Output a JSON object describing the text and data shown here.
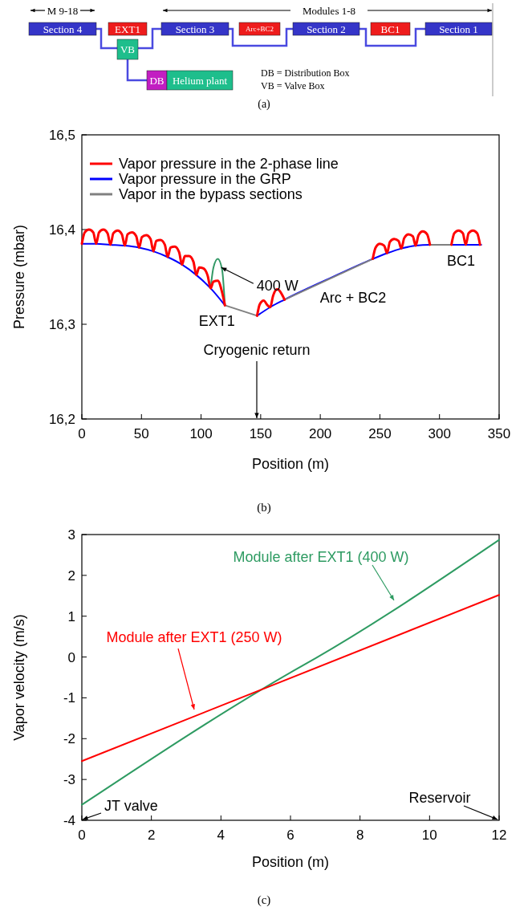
{
  "chart_data": [
    {
      "type": "other",
      "annotations": [
        "M 9-18",
        "Modules 1-8",
        "Section 4",
        "EXT1",
        "Section 3",
        "Arc+BC2",
        "Section 2",
        "BC1",
        "Section 1",
        "VB",
        "DB",
        "Helium plant",
        "DB = Distribution Box",
        "VB = Valve Box",
        "(a)"
      ]
    },
    {
      "type": "line",
      "xlabel": "Position (m)",
      "ylabel": "Pressure (mbar)",
      "xlim": [
        0,
        350
      ],
      "ylim": [
        16.2,
        16.5
      ],
      "xticks": [
        0,
        50,
        100,
        150,
        200,
        250,
        300,
        350
      ],
      "yticks": [
        {
          "value": 16.2,
          "label": "16,2"
        },
        {
          "value": 16.3,
          "label": "16,3"
        },
        {
          "value": 16.4,
          "label": "16,4"
        },
        {
          "value": 16.5,
          "label": "16,5"
        }
      ],
      "legend": "top left",
      "marker": "none",
      "series": [
        {
          "name": "Vapor pressure in the 2-phase line",
          "color": "#ff0000",
          "x": [
            0,
            2.4,
            6,
            9.6,
            12,
            14.4,
            18,
            21.6,
            24,
            26.4,
            30,
            33.6,
            36,
            38.4,
            42,
            45.6,
            48,
            50.4,
            54,
            57.6,
            60,
            62.4,
            66,
            69.6,
            72,
            74.4,
            78,
            81.6,
            84,
            86.4,
            90,
            93.6,
            96,
            98.4,
            102,
            105.6,
            108,
            110.4,
            114,
            117.6,
            120,
            133,
            147,
            149.2,
            152.5,
            155.8,
            158,
            160.4,
            164,
            167.6,
            170,
            200,
            244,
            246.4,
            250,
            253.6,
            256,
            258.4,
            262,
            265.6,
            268,
            270.4,
            274,
            277.6,
            280,
            282.4,
            286,
            289.6,
            292,
            300,
            310,
            312.4,
            316,
            319.6,
            322,
            324.4,
            328,
            331.6,
            334
          ],
          "values": [
            16.385,
            16.397,
            16.4,
            16.397,
            16.385,
            16.397,
            16.4,
            16.396,
            16.384,
            16.396,
            16.399,
            16.395,
            16.383,
            16.395,
            16.397,
            16.393,
            16.381,
            16.392,
            16.394,
            16.39,
            16.377,
            16.388,
            16.389,
            16.384,
            16.371,
            16.381,
            16.382,
            16.376,
            16.363,
            16.372,
            16.372,
            16.366,
            16.352,
            16.36,
            16.359,
            16.351,
            16.338,
            16.345,
            16.346,
            16.334,
            16.32,
            null,
            16.309,
            16.321,
            16.325,
            16.32,
            16.318,
            16.33,
            16.337,
            16.332,
            16.326,
            null,
            16.369,
            16.381,
            16.385,
            16.383,
            16.375,
            16.387,
            16.39,
            16.388,
            16.38,
            16.391,
            16.395,
            16.393,
            16.383,
            16.394,
            16.398,
            16.395,
            16.384,
            null,
            16.384,
            16.396,
            16.399,
            16.396,
            16.384,
            16.396,
            16.399,
            16.396,
            16.384
          ]
        },
        {
          "name": "Vapor pressure in the GRP",
          "color": "#0000ff",
          "x": [
            0,
            12,
            24,
            36,
            48,
            60,
            72,
            84,
            96,
            108,
            120,
            133,
            147,
            158,
            170,
            207,
            244,
            256,
            268,
            280,
            292,
            310,
            335
          ],
          "values": [
            16.385,
            16.385,
            16.384,
            16.383,
            16.381,
            16.377,
            16.371,
            16.363,
            16.352,
            16.338,
            16.32,
            null,
            16.309,
            16.318,
            16.326,
            16.348,
            16.369,
            16.375,
            16.38,
            16.383,
            16.384,
            16.384,
            16.384
          ]
        },
        {
          "name": "Vapor in the bypass sections",
          "color": "#808080",
          "x": [
            120,
            147,
            158,
            170,
            244,
            268,
            292,
            310
          ],
          "values": [
            16.32,
            16.309,
            null,
            16.326,
            16.369,
            null,
            16.384,
            16.384
          ]
        },
        {
          "color": "#339966",
          "x": [
            108,
            110.4,
            114,
            117.6,
            120
          ],
          "values": [
            16.338,
            16.36,
            16.369,
            16.358,
            16.32
          ]
        }
      ],
      "annotations": [
        {
          "text": "400 W",
          "x": 117,
          "y": 16.36
        },
        {
          "text": "EXT1",
          "x": 120,
          "y": 16.32
        },
        "Cryogenic return",
        {
          "text": "Arc + BC2",
          "x": 210,
          "y": 16.345
        },
        {
          "text": "BC1",
          "x": 316,
          "y": 16.384
        },
        "(b)"
      ]
    },
    {
      "type": "line",
      "xlabel": "Position (m)",
      "ylabel": "Vapor velocity (m/s)",
      "xlim": [
        0,
        12
      ],
      "ylim": [
        -4,
        3
      ],
      "xticks": [
        0,
        2,
        4,
        6,
        8,
        10,
        12
      ],
      "yticks": [
        -4,
        -3,
        -2,
        -1,
        0,
        1,
        2,
        3
      ],
      "marker": "none",
      "series": [
        {
          "name": "Module after EXT1 (250 W)",
          "color": "#ff0000",
          "x": [
            0,
            12
          ],
          "values": [
            -2.55,
            1.52
          ]
        },
        {
          "name": "Module after EXT1 (400 W)",
          "color": "#2e9b62",
          "x": [
            0,
            6.1,
            6.72,
            12
          ],
          "values": [
            -3.62,
            -0.33,
            -0.03,
            2.87
          ]
        }
      ],
      "annotations": [
        "JT valve",
        "Reservoir",
        "(c)"
      ]
    }
  ]
}
